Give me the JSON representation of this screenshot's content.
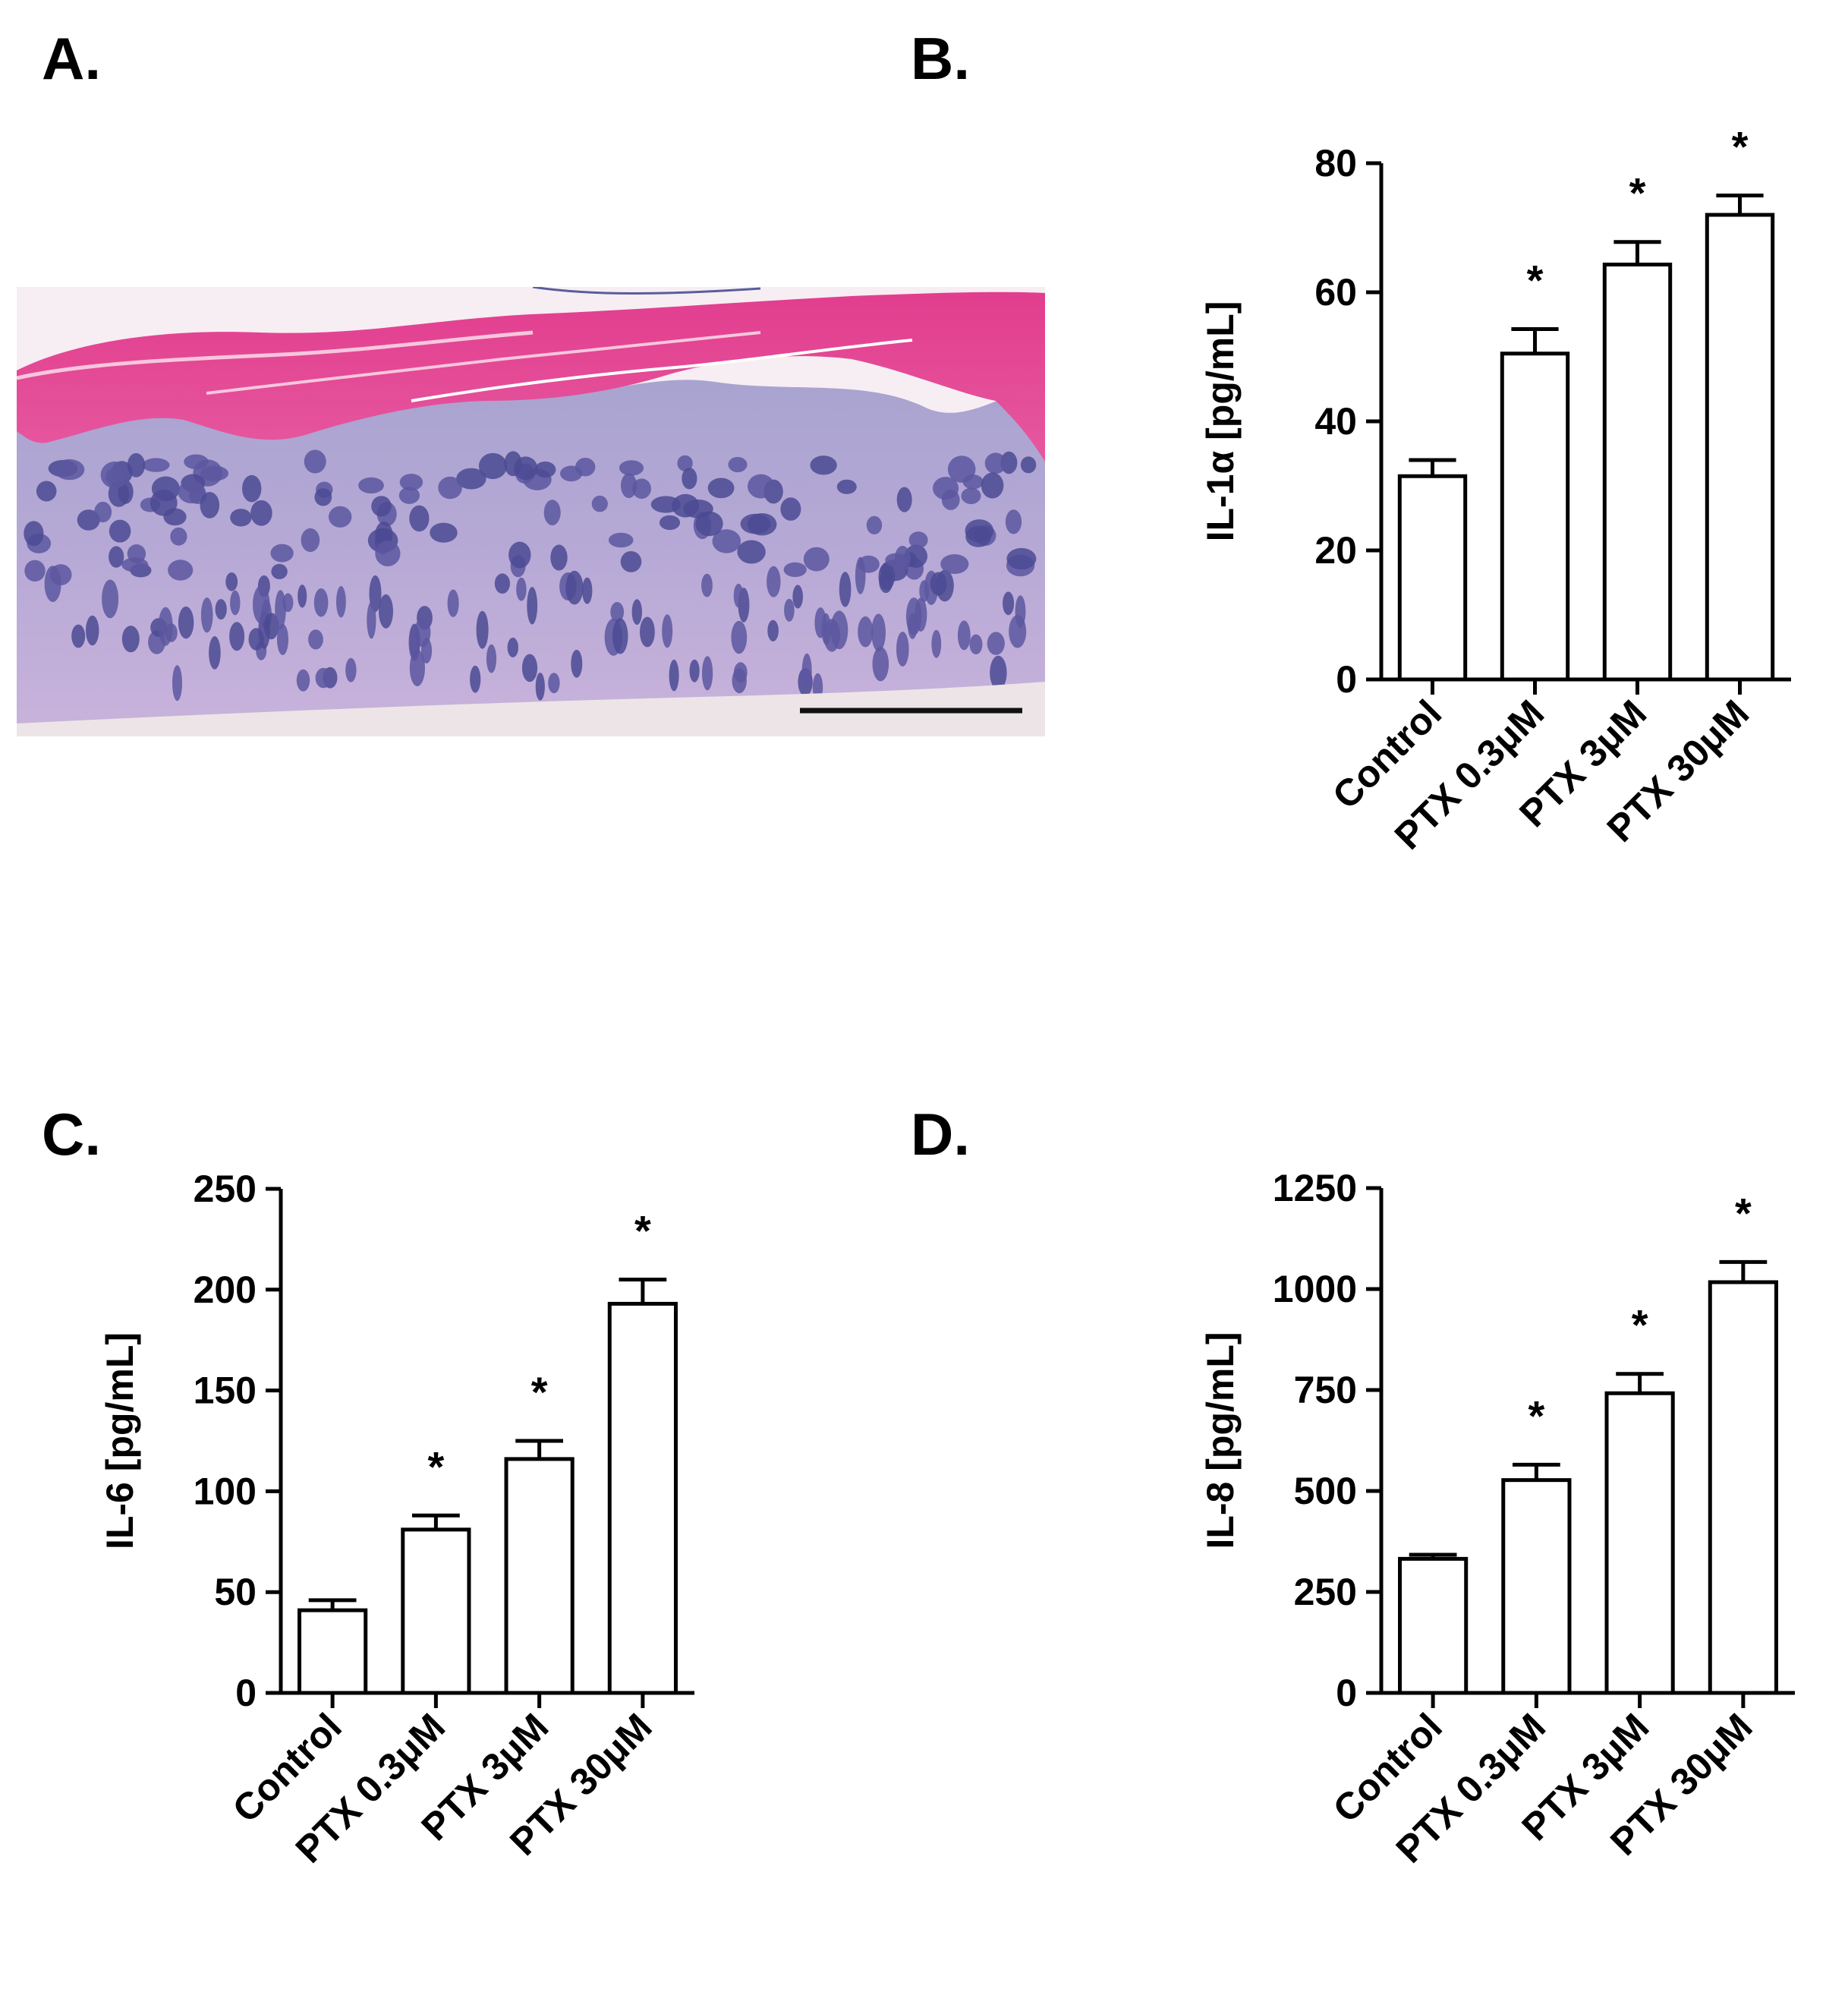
{
  "panels": {
    "a": {
      "label": "A."
    },
    "b": {
      "label": "B."
    },
    "c": {
      "label": "C."
    },
    "d": {
      "label": "D."
    }
  },
  "chart_data": [
    {
      "id": "b",
      "type": "bar",
      "ylabel": "IL-1α [pg/mL]",
      "categories": [
        "Control",
        "PTX 0.3μM",
        "PTX 3μM",
        "PTX 30μM"
      ],
      "values": [
        31.5,
        50.5,
        64.3,
        72.0
      ],
      "errors": [
        2.5,
        3.8,
        3.5,
        3.0
      ],
      "significance": [
        "",
        "*",
        "*",
        "*"
      ],
      "ylim": [
        0,
        80
      ],
      "yticks": [
        0,
        20,
        40,
        60,
        80
      ],
      "ytick_labels": [
        "0",
        "20",
        "40",
        "60",
        "80"
      ],
      "grid": false,
      "bar_color": "#ffffff"
    },
    {
      "id": "c",
      "type": "bar",
      "ylabel": "IL-6 [pg/mL]",
      "categories": [
        "Control",
        "PTX 0.3μM",
        "PTX 3μM",
        "PTX 30μM"
      ],
      "values": [
        41,
        81,
        116,
        193
      ],
      "errors": [
        5,
        7,
        9,
        12
      ],
      "significance": [
        "",
        "*",
        "*",
        "*"
      ],
      "ylim": [
        0,
        250
      ],
      "yticks": [
        0,
        50,
        100,
        150,
        200,
        250
      ],
      "ytick_labels": [
        "0",
        "50",
        "100",
        "150",
        "200",
        "250"
      ],
      "grid": false,
      "bar_color": "#ffffff"
    },
    {
      "id": "d",
      "type": "bar",
      "ylabel": "IL-8 [pg/mL]",
      "categories": [
        "Control",
        "PTX 0.3μM",
        "PTX 3μM",
        "PTX 30μM"
      ],
      "values": [
        332,
        527,
        742,
        1017
      ],
      "errors": [
        10,
        38,
        48,
        50
      ],
      "significance": [
        "",
        "*",
        "*",
        "*"
      ],
      "ylim": [
        0,
        1250
      ],
      "yticks": [
        0,
        250,
        500,
        750,
        1000,
        1250
      ],
      "ytick_labels": [
        "0",
        "250",
        "500",
        "750",
        "1000",
        "1250"
      ],
      "grid": false,
      "bar_color": "#ffffff"
    }
  ]
}
